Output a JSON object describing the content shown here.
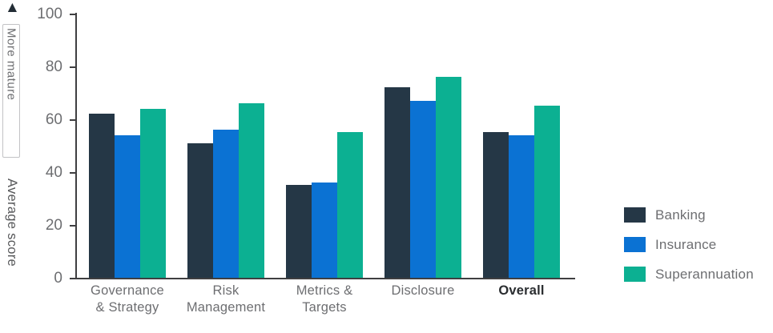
{
  "chart": {
    "arrow_icon": "▲",
    "more_mature_label": "More mature"
  },
  "chart_data": {
    "type": "bar",
    "title": "",
    "xlabel": "",
    "ylabel": "Average score",
    "ylim": [
      0,
      100
    ],
    "yticks": [
      0,
      20,
      40,
      60,
      80,
      100
    ],
    "grid": false,
    "legend_position": "right",
    "categories": [
      "Governance & Strategy",
      "Risk Management",
      "Metrics & Targets",
      "Disclosure",
      "Overall"
    ],
    "categories_display": [
      {
        "lines": [
          "Governance",
          "& Strategy"
        ],
        "emphasized": false
      },
      {
        "lines": [
          "Risk",
          "Management"
        ],
        "emphasized": false
      },
      {
        "lines": [
          "Metrics &",
          "Targets"
        ],
        "emphasized": false
      },
      {
        "lines": [
          "Disclosure"
        ],
        "emphasized": false
      },
      {
        "lines": [
          "Overall"
        ],
        "emphasized": true
      }
    ],
    "series": [
      {
        "name": "Banking",
        "color": "#253746",
        "values": [
          62,
          51,
          35,
          72,
          55
        ]
      },
      {
        "name": "Insurance",
        "color": "#0b72d3",
        "values": [
          54,
          56,
          36,
          67,
          54
        ]
      },
      {
        "name": "Superannuation",
        "color": "#0cb092",
        "values": [
          64,
          66,
          55,
          76,
          65
        ]
      }
    ]
  },
  "colors": {
    "axis": "#3f3f41",
    "tick_label": "#6d6e71",
    "category_label": "#6d6e71",
    "emphasized_label": "#2a2d30",
    "ylabel_text": "#57585a",
    "box_border": "#c2c3c5",
    "arrow": "#232d36",
    "background": "#ffffff"
  }
}
